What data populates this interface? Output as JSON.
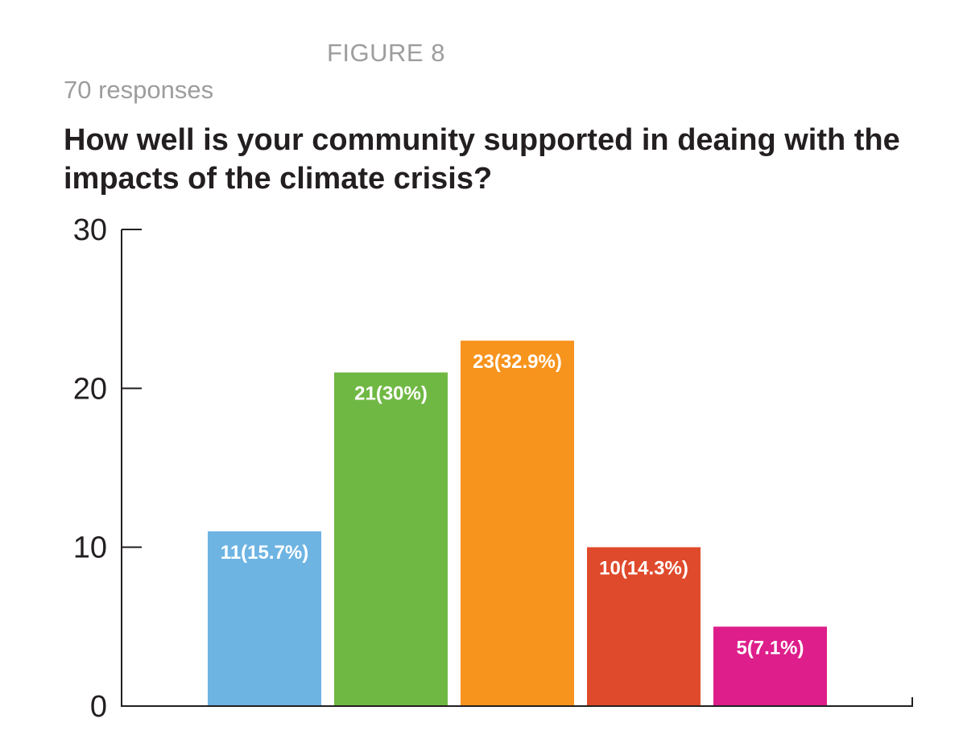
{
  "figure_label": "FIGURE 8",
  "responses_text": "70 responses",
  "chart_data": {
    "type": "bar",
    "title": "How well is your community supported in deaing with the impacts of the climate crisis?",
    "categories": [
      "",
      "",
      "",
      "",
      ""
    ],
    "values": [
      11,
      21,
      23,
      10,
      5
    ],
    "data_labels": [
      "11(15.7%)",
      "21(30%)",
      "23(32.9%)",
      "10(14.3%)",
      "5(7.1%)"
    ],
    "colors": [
      "#6db4e3",
      "#70b844",
      "#f7941d",
      "#e04a2c",
      "#dd1e8b"
    ],
    "ylim": [
      0,
      30
    ],
    "yticks": [
      0,
      10,
      20,
      30
    ],
    "ytick_labels": [
      "0",
      "10",
      "20",
      "30"
    ],
    "xlabel": "",
    "ylabel": "",
    "grid": false,
    "legend": "none"
  }
}
